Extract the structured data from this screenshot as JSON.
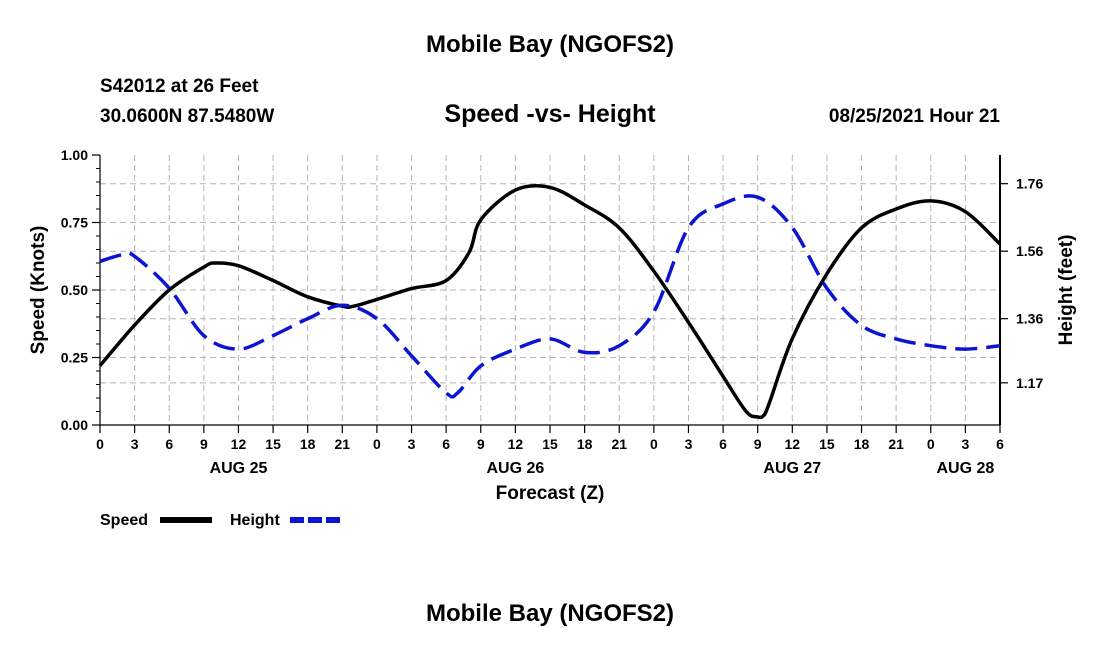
{
  "header": {
    "title": "Mobile Bay (NGOFS2)",
    "station": "S42012 at 26 Feet",
    "coords": "30.0600N  87.5480W",
    "subtitle": "Speed -vs- Height",
    "datetime": "08/25/2021 Hour 21"
  },
  "footer": {
    "title": "Mobile Bay (NGOFS2)"
  },
  "legend": {
    "speed_label": "Speed",
    "height_label": "Height",
    "speed_color": "#000000",
    "height_color": "#0a14d2"
  },
  "chart_data": {
    "type": "line",
    "title": "Speed -vs- Height",
    "xlabel": "Forecast (Z)",
    "ylabel": "Speed (Knots)",
    "y2label": "Height (feet)",
    "grid": true,
    "x_range_hours": [
      0,
      78
    ],
    "x_tick_step_hours": 3,
    "x_tick_labels": [
      "0",
      "3",
      "6",
      "9",
      "12",
      "15",
      "18",
      "21",
      "0",
      "3",
      "6",
      "9",
      "12",
      "15",
      "18",
      "21",
      "0",
      "3",
      "6",
      "9",
      "12",
      "15",
      "18",
      "21",
      "0",
      "3",
      "6"
    ],
    "date_labels": [
      {
        "hour": 12,
        "text": "AUG 25"
      },
      {
        "hour": 36,
        "text": "AUG 26"
      },
      {
        "hour": 60,
        "text": "AUG 27"
      },
      {
        "hour": 75,
        "text": "AUG 28"
      }
    ],
    "ylim": [
      0,
      1.0
    ],
    "yticks": [
      0,
      0.25,
      0.5,
      0.75,
      1.0
    ],
    "ytick_labels": [
      "0.00",
      "0.25",
      "0.50",
      "0.75",
      "1.00"
    ],
    "y2lim": [
      1.045,
      1.845
    ],
    "y2ticks": [
      1.17,
      1.36,
      1.56,
      1.76
    ],
    "y2tick_labels": [
      "1.17",
      "1.36",
      "1.56",
      "1.76"
    ],
    "series": [
      {
        "name": "Speed",
        "axis": "left",
        "color": "#000000",
        "dash": "solid",
        "x": [
          0,
          3,
          6,
          9,
          10,
          12,
          15,
          18,
          21,
          22,
          24,
          27,
          30,
          32,
          33,
          36,
          39,
          42,
          45,
          48,
          51,
          54,
          56,
          57,
          57.5,
          58,
          60,
          63,
          66,
          69,
          72,
          75,
          78
        ],
        "y": [
          0.22,
          0.37,
          0.5,
          0.585,
          0.6,
          0.59,
          0.535,
          0.475,
          0.44,
          0.44,
          0.465,
          0.505,
          0.535,
          0.64,
          0.76,
          0.87,
          0.88,
          0.815,
          0.73,
          0.57,
          0.38,
          0.18,
          0.05,
          0.03,
          0.035,
          0.08,
          0.32,
          0.56,
          0.73,
          0.8,
          0.83,
          0.79,
          0.67
        ]
      },
      {
        "name": "Height",
        "axis": "right",
        "color": "#0a14d2",
        "dash": "dashed",
        "x": [
          0,
          2,
          3,
          6,
          9,
          12,
          15,
          18,
          21,
          24,
          27,
          30,
          31,
          33,
          36,
          39,
          42,
          45,
          48,
          51,
          54,
          57,
          60,
          63,
          66,
          69,
          72,
          75,
          78
        ],
        "y": [
          1.53,
          1.55,
          1.545,
          1.45,
          1.31,
          1.27,
          1.31,
          1.36,
          1.4,
          1.36,
          1.25,
          1.14,
          1.14,
          1.22,
          1.27,
          1.3,
          1.26,
          1.28,
          1.38,
          1.63,
          1.7,
          1.72,
          1.63,
          1.45,
          1.34,
          1.3,
          1.28,
          1.27,
          1.28
        ]
      }
    ]
  }
}
